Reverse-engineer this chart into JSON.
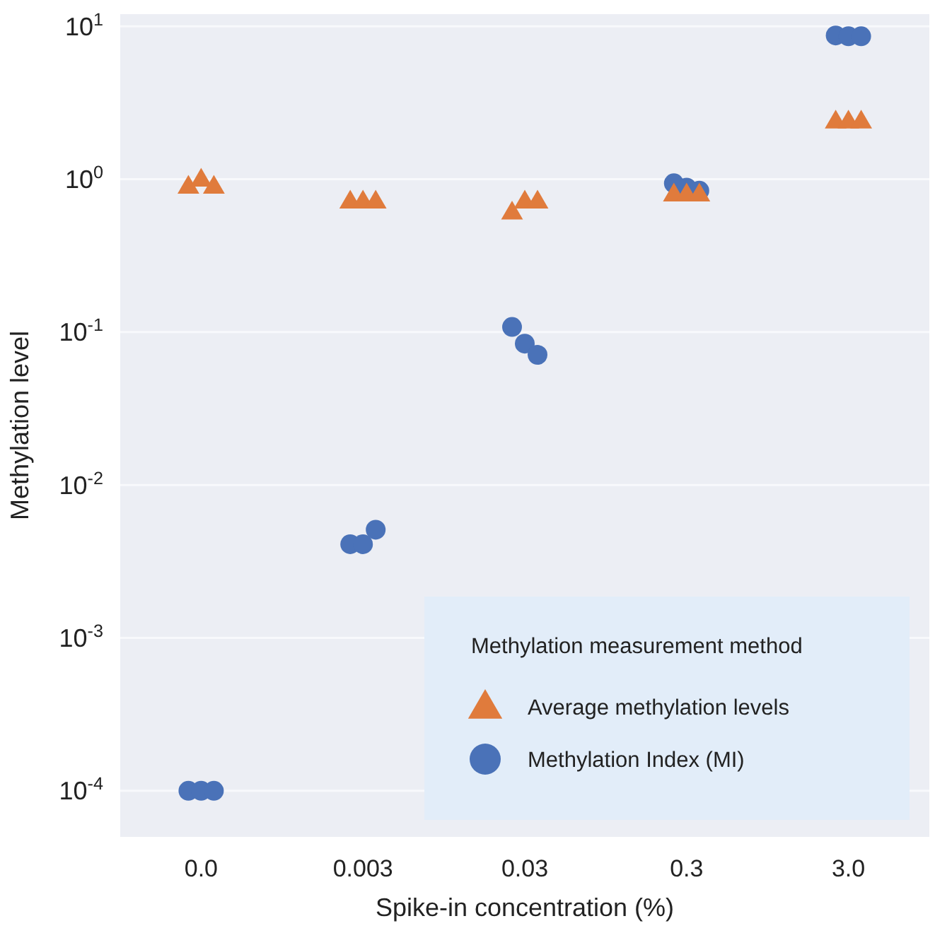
{
  "chart_data": {
    "type": "scatter",
    "xlabel": "Spike-in concentration (%)",
    "ylabel": "Methylation level",
    "categories": [
      "0.0",
      "0.003",
      "0.03",
      "0.3",
      "3.0"
    ],
    "log": "y",
    "ylim": [
      5e-05,
      12
    ],
    "yticks": [
      {
        "value": 0.0001,
        "label": "10$^{-4}$"
      },
      {
        "value": 0.001,
        "label": "10$^{-3}$"
      },
      {
        "value": 0.01,
        "label": "10$^{-2}$"
      },
      {
        "value": 0.1,
        "label": "10$^{-1}$"
      },
      {
        "value": 1,
        "label": "10$^{0}$"
      },
      {
        "value": 10,
        "label": "10$^{1}$"
      }
    ],
    "grid": "y",
    "legend": "bottom right",
    "legend_title": "Methylation measurement method",
    "series": [
      {
        "name": "Average methylation levels",
        "color": "#e07b3c",
        "marker": "triangle",
        "x": [
          "0.0",
          "0.0",
          "0.0",
          "0.003",
          "0.003",
          "0.003",
          "0.03",
          "0.03",
          "0.03",
          "0.3",
          "0.3",
          "0.3",
          "3.0",
          "3.0",
          "3.0"
        ],
        "values": [
          0.9,
          1.0,
          0.9,
          0.72,
          0.72,
          0.72,
          0.61,
          0.72,
          0.72,
          0.8,
          0.8,
          0.8,
          2.4,
          2.4,
          2.4
        ]
      },
      {
        "name": "Methylation Index (MI)",
        "color": "#4a72b8",
        "marker": "circle",
        "x": [
          "0.0",
          "0.0",
          "0.0",
          "0.003",
          "0.003",
          "0.003",
          "0.03",
          "0.03",
          "0.03",
          "0.3",
          "0.3",
          "0.3",
          "3.0",
          "3.0",
          "3.0"
        ],
        "values": [
          0.0001,
          0.0001,
          0.0001,
          0.0041,
          0.0041,
          0.0051,
          0.108,
          0.084,
          0.071,
          0.94,
          0.88,
          0.84,
          8.7,
          8.6,
          8.6
        ]
      }
    ]
  }
}
